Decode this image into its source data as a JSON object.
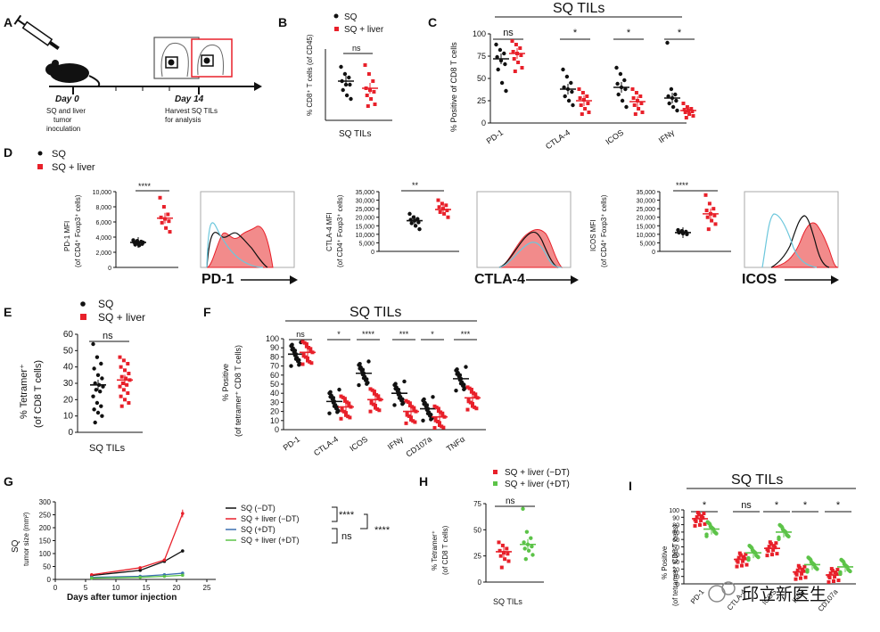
{
  "figure": {
    "panel_labels": [
      "A",
      "B",
      "C",
      "D",
      "E",
      "F",
      "G",
      "H",
      "I"
    ],
    "watermark": "邱立新医生"
  },
  "colors": {
    "sq": "#111111",
    "liver": "#e8202a",
    "minus_dt": "#e8202a",
    "plus_dt": "#5cc348",
    "blue": "#3a6fb0",
    "hist_fill": "#f28b8b",
    "hist_cyan": "#6cc7dc"
  },
  "panel_a": {
    "day0_label": "Day 0",
    "day0_desc": [
      "SQ and liver",
      "tumor",
      "inoculation"
    ],
    "day14_label": "Day 14",
    "day14_desc": [
      "Harvest SQ TILs",
      "for analysis"
    ]
  },
  "panel_b": {
    "legend": [
      "SQ",
      "SQ + liver"
    ],
    "ylabel": "% CD8⁺ T cells (of CD45)",
    "xlabel": "SQ TILs",
    "sig": "ns"
  },
  "panel_c": {
    "title": "SQ TILs",
    "ylabel": "% Positive of CD8 T cells",
    "yticks": [
      "0",
      "25",
      "50",
      "75",
      "100"
    ],
    "categories": [
      "PD-1",
      "CTLA-4",
      "ICOS",
      "IFNγ"
    ],
    "sig": [
      "ns",
      "*",
      "*",
      "*"
    ]
  },
  "panel_d": {
    "legend": [
      "SQ",
      "SQ + liver"
    ],
    "sub": [
      {
        "ylabel": "PD-1 MFI",
        "ylabel2": "(of CD4⁺ Foxp3⁺ cells)",
        "yticks": [
          "0",
          "2,000",
          "4,000",
          "6,000",
          "8,000",
          "10,000"
        ],
        "sig": "****",
        "hist_label": "PD-1"
      },
      {
        "ylabel": "CTLA-4 MFI",
        "ylabel2": "(of CD4⁺ Foxp3⁺ cells)",
        "yticks": [
          "0",
          "5,000",
          "10,000",
          "15,000",
          "20,000",
          "25,000",
          "30,000",
          "35,000"
        ],
        "sig": "**",
        "hist_label": "CTLA-4"
      },
      {
        "ylabel": "ICOS MFI",
        "ylabel2": "(of CD4⁺ Foxp3⁺ cells)",
        "yticks": [
          "0",
          "5,000",
          "10,000",
          "15,000",
          "20,000",
          "25,000",
          "30,000",
          "35,000"
        ],
        "sig": "****",
        "hist_label": "ICOS"
      }
    ]
  },
  "panel_e": {
    "legend": [
      "SQ",
      "SQ + liver"
    ],
    "ylabel": "% Tetramer⁺",
    "ylabel2": "(of CD8 T cells)",
    "yticks": [
      "0",
      "10",
      "20",
      "30",
      "40",
      "50",
      "60"
    ],
    "xlabel": "SQ TILs",
    "sig": "ns"
  },
  "panel_f": {
    "title": "SQ TILs",
    "ylabel": "% Positive",
    "ylabel2": "(of tetramer⁺ CD8 T cells)",
    "yticks": [
      "0",
      "10",
      "20",
      "30",
      "40",
      "50",
      "60",
      "70",
      "80",
      "90",
      "100"
    ],
    "categories": [
      "PD-1",
      "CTLA-4",
      "ICOS",
      "IFNγ",
      "CD107a",
      "TNFα"
    ],
    "sig": [
      "ns",
      "*",
      "****",
      "***",
      "*",
      "***"
    ]
  },
  "panel_g": {
    "ylabel": "SQ",
    "ylabel2": "tumor size (mm²)",
    "xlabel": "Days after tumor injection",
    "yticks": [
      "0",
      "50",
      "100",
      "150",
      "200",
      "250",
      "300"
    ],
    "xticks": [
      "0",
      "5",
      "10",
      "15",
      "20",
      "25"
    ],
    "legend": [
      "SQ (−DT)",
      "SQ + liver (−DT)",
      "SQ (+DT)",
      "SQ + liver (+DT)"
    ],
    "sig": [
      "****",
      "ns",
      "****"
    ]
  },
  "panel_h": {
    "legend": [
      "SQ + liver (−DT)",
      "SQ + liver (+DT)"
    ],
    "ylabel": "% Tetramer⁺",
    "ylabel2": "(of CD8 T cells)",
    "yticks": [
      "0",
      "25",
      "50",
      "75"
    ],
    "xlabel": "SQ TILs",
    "sig": "ns"
  },
  "panel_i": {
    "title": "SQ TILs",
    "ylabel": "% Positive",
    "ylabel2": "(of tetramer⁺ CD8 T cells)",
    "yticks": [
      "0",
      "10",
      "20",
      "30",
      "40",
      "50",
      "60",
      "70",
      "80",
      "90",
      "100"
    ],
    "categories": [
      "PD-1",
      "CTLA-4",
      "ICOS",
      "IFNγ",
      "CD107a"
    ],
    "sig": [
      "*",
      "ns",
      "*",
      "*",
      "*"
    ]
  },
  "chart_data": [
    {
      "type": "scatter",
      "panel": "B",
      "categories": [
        "SQ",
        "SQ + liver"
      ],
      "series": [
        {
          "name": "SQ",
          "mean": 22,
          "values": [
            30,
            26,
            24,
            22,
            20,
            20,
            17,
            14,
            12
          ]
        },
        {
          "name": "SQ + liver",
          "mean": 18,
          "values": [
            31,
            26,
            22,
            18,
            17,
            16,
            14,
            12,
            9,
            8
          ]
        }
      ],
      "ylabel": "% CD8+ T cells (of CD45)"
    },
    {
      "type": "scatter",
      "panel": "C",
      "categories": [
        "PD-1",
        "CTLA-4",
        "ICOS",
        "IFNγ"
      ],
      "ylim": [
        0,
        100
      ],
      "series": [
        {
          "name": "SQ",
          "mean": [
            72,
            38,
            40,
            28
          ],
          "values": [
            [
              88,
              82,
              78,
              74,
              70,
              66,
              60,
              45,
              36
            ],
            [
              60,
              52,
              45,
              40,
              38,
              35,
              30,
              25,
              20
            ],
            [
              62,
              55,
              48,
              44,
              40,
              38,
              32,
              25,
              18
            ],
            [
              90,
              38,
              32,
              30,
              28,
              25,
              22,
              18,
              14
            ]
          ]
        },
        {
          "name": "SQ + liver",
          "mean": [
            78,
            25,
            24,
            14
          ],
          "values": [
            [
              92,
              88,
              84,
              80,
              78,
              76,
              72,
              68,
              62,
              58
            ],
            [
              38,
              34,
              30,
              28,
              26,
              22,
              20,
              16,
              12,
              10
            ],
            [
              38,
              34,
              30,
              28,
              25,
              22,
              20,
              16,
              12,
              10
            ],
            [
              22,
              18,
              16,
              15,
              14,
              13,
              12,
              10,
              8,
              6
            ]
          ]
        }
      ]
    },
    {
      "type": "scatter",
      "panel": "D-PD-1",
      "ylim": [
        0,
        10000
      ],
      "series": [
        {
          "name": "SQ",
          "mean": 3300,
          "values": [
            3600,
            3500,
            3400,
            3300,
            3200,
            3100,
            3000,
            2900,
            3300
          ]
        },
        {
          "name": "SQ + liver",
          "mean": 6500,
          "values": [
            9200,
            8000,
            7000,
            6600,
            6400,
            6100,
            5900,
            5200,
            4700
          ]
        }
      ]
    },
    {
      "type": "scatter",
      "panel": "D-CTLA-4",
      "ylim": [
        0,
        35000
      ],
      "series": [
        {
          "name": "SQ",
          "mean": 18000,
          "values": [
            22000,
            20000,
            19000,
            18500,
            18000,
            17000,
            16500,
            15000,
            13000
          ]
        },
        {
          "name": "SQ + liver",
          "mean": 24500,
          "values": [
            30000,
            28000,
            27000,
            26000,
            25000,
            24000,
            23000,
            22000,
            20000
          ]
        }
      ]
    },
    {
      "type": "scatter",
      "panel": "D-ICOS",
      "ylim": [
        0,
        35000
      ],
      "series": [
        {
          "name": "SQ",
          "mean": 11000,
          "values": [
            12500,
            12000,
            11500,
            11000,
            10500,
            10000
          ]
        },
        {
          "name": "SQ + liver",
          "mean": 22000,
          "values": [
            33000,
            28000,
            25000,
            24000,
            22000,
            21000,
            20000,
            18000,
            16000,
            13000
          ]
        }
      ]
    },
    {
      "type": "scatter",
      "panel": "E",
      "ylim": [
        0,
        60
      ],
      "series": [
        {
          "name": "SQ",
          "mean": 29,
          "values": [
            54,
            46,
            42,
            39,
            35,
            33,
            30,
            29,
            28,
            26,
            25,
            22,
            18,
            16,
            14,
            12,
            10,
            6
          ]
        },
        {
          "name": "SQ + liver",
          "mean": 32,
          "values": [
            46,
            44,
            42,
            40,
            38,
            36,
            34,
            33,
            32,
            30,
            29,
            28,
            26,
            24,
            22,
            20,
            18,
            16
          ]
        }
      ]
    },
    {
      "type": "scatter",
      "panel": "F",
      "ylim": [
        0,
        100
      ],
      "categories": [
        "PD-1",
        "CTLA-4",
        "ICOS",
        "IFNγ",
        "CD107a",
        "TNFα"
      ],
      "series": [
        {
          "name": "SQ",
          "mean": [
            83,
            31,
            62,
            40,
            23,
            56
          ]
        },
        {
          "name": "SQ + liver",
          "mean": [
            85,
            25,
            33,
            20,
            14,
            35
          ]
        }
      ]
    },
    {
      "type": "line",
      "panel": "G",
      "xlabel": "Days after tumor injection",
      "ylabel": "SQ tumor size (mm²)",
      "ylim": [
        0,
        300
      ],
      "x": [
        6,
        14,
        18,
        21
      ],
      "series": [
        {
          "name": "SQ (−DT)",
          "values": [
            15,
            35,
            70,
            110
          ]
        },
        {
          "name": "SQ + liver (−DT)",
          "values": [
            18,
            45,
            75,
            255
          ]
        },
        {
          "name": "SQ (+DT)",
          "values": [
            8,
            12,
            18,
            24
          ]
        },
        {
          "name": "SQ + liver (+DT)",
          "values": [
            5,
            8,
            12,
            16
          ]
        }
      ]
    },
    {
      "type": "scatter",
      "panel": "H",
      "ylim": [
        0,
        75
      ],
      "series": [
        {
          "name": "SQ + liver (−DT)",
          "mean": 29,
          "values": [
            38,
            35,
            32,
            30,
            28,
            27,
            25,
            22,
            20,
            14
          ]
        },
        {
          "name": "SQ + liver (+DT)",
          "mean": 36,
          "values": [
            70,
            48,
            42,
            38,
            36,
            34,
            32,
            30,
            26,
            22
          ]
        }
      ]
    },
    {
      "type": "scatter",
      "panel": "I",
      "ylim": [
        0,
        100
      ],
      "categories": [
        "PD-1",
        "CTLA-4",
        "ICOS",
        "IFNγ",
        "CD107a"
      ],
      "series": [
        {
          "name": "SQ + liver (−DT)",
          "mean": [
            88,
            33,
            48,
            16,
            12
          ]
        },
        {
          "name": "SQ + liver (+DT)",
          "mean": [
            74,
            42,
            70,
            26,
            23
          ]
        }
      ]
    }
  ]
}
